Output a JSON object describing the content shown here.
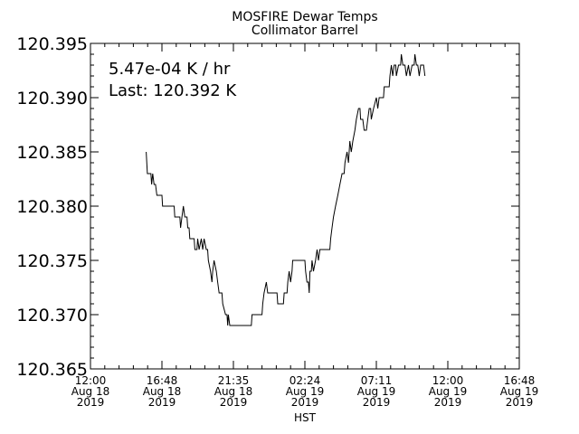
{
  "chart_data": {
    "type": "line",
    "title": "MOSFIRE Dewar Temps",
    "subtitle": "Collimator Barrel",
    "xlabel": "HST",
    "ylabel": "",
    "ylim": [
      120.365,
      120.395
    ],
    "yticks": [
      120.365,
      120.37,
      120.375,
      120.38,
      120.385,
      120.39,
      120.395
    ],
    "ytick_labels": [
      "120.365",
      "120.370",
      "120.375",
      "120.380",
      "120.385",
      "120.390",
      "120.395"
    ],
    "xticks": [
      {
        "time": "12:00",
        "date": "Aug 18",
        "year": "2019"
      },
      {
        "time": "16:48",
        "date": "Aug 18",
        "year": "2019"
      },
      {
        "time": "21:35",
        "date": "Aug 18",
        "year": "2019"
      },
      {
        "time": "02:24",
        "date": "Aug 19",
        "year": "2019"
      },
      {
        "time": "07:11",
        "date": "Aug 19",
        "year": "2019"
      },
      {
        "time": "12:00",
        "date": "Aug 19",
        "year": "2019"
      },
      {
        "time": "16:48",
        "date": "Aug 19",
        "year": "2019"
      }
    ],
    "x_unit": "hours since 12:00 Aug 18 2019",
    "xlim": [
      0,
      28.8
    ],
    "annotations": [
      "5.47e-04 K / hr",
      "Last: 120.392 K"
    ],
    "grid": false,
    "series": [
      {
        "color": "#000000",
        "points": [
          [
            3.74,
            120.385
          ],
          [
            3.82,
            120.383
          ],
          [
            4.06,
            120.383
          ],
          [
            4.11,
            120.382
          ],
          [
            4.18,
            120.383
          ],
          [
            4.27,
            120.382
          ],
          [
            4.37,
            120.382
          ],
          [
            4.46,
            120.381
          ],
          [
            4.8,
            120.381
          ],
          [
            4.84,
            120.38
          ],
          [
            5.62,
            120.38
          ],
          [
            5.66,
            120.379
          ],
          [
            6.0,
            120.379
          ],
          [
            6.05,
            120.378
          ],
          [
            6.14,
            120.379
          ],
          [
            6.24,
            120.38
          ],
          [
            6.34,
            120.379
          ],
          [
            6.48,
            120.379
          ],
          [
            6.53,
            120.378
          ],
          [
            6.62,
            120.378
          ],
          [
            6.67,
            120.377
          ],
          [
            6.96,
            120.377
          ],
          [
            7.01,
            120.376
          ],
          [
            7.15,
            120.376
          ],
          [
            7.2,
            120.377
          ],
          [
            7.3,
            120.376
          ],
          [
            7.44,
            120.377
          ],
          [
            7.54,
            120.376
          ],
          [
            7.63,
            120.377
          ],
          [
            7.78,
            120.376
          ],
          [
            7.87,
            120.376
          ],
          [
            7.92,
            120.375
          ],
          [
            8.06,
            120.374
          ],
          [
            8.16,
            120.373
          ],
          [
            8.21,
            120.374
          ],
          [
            8.3,
            120.375
          ],
          [
            8.45,
            120.374
          ],
          [
            8.54,
            120.373
          ],
          [
            8.64,
            120.372
          ],
          [
            8.83,
            120.372
          ],
          [
            8.88,
            120.371
          ],
          [
            9.07,
            120.37
          ],
          [
            9.17,
            120.37
          ],
          [
            9.22,
            120.369
          ],
          [
            9.26,
            120.37
          ],
          [
            9.36,
            120.369
          ],
          [
            10.8,
            120.369
          ],
          [
            10.85,
            120.37
          ],
          [
            11.52,
            120.37
          ],
          [
            11.57,
            120.371
          ],
          [
            11.66,
            120.372
          ],
          [
            11.81,
            120.373
          ],
          [
            11.9,
            120.372
          ],
          [
            12.53,
            120.372
          ],
          [
            12.58,
            120.371
          ],
          [
            12.96,
            120.371
          ],
          [
            13.01,
            120.372
          ],
          [
            13.2,
            120.372
          ],
          [
            13.25,
            120.373
          ],
          [
            13.34,
            120.374
          ],
          [
            13.44,
            120.373
          ],
          [
            13.54,
            120.374
          ],
          [
            13.58,
            120.375
          ],
          [
            14.4,
            120.375
          ],
          [
            14.45,
            120.374
          ],
          [
            14.54,
            120.373
          ],
          [
            14.64,
            120.373
          ],
          [
            14.69,
            120.372
          ],
          [
            14.74,
            120.374
          ],
          [
            14.83,
            120.374
          ],
          [
            14.88,
            120.375
          ],
          [
            14.98,
            120.374
          ],
          [
            15.12,
            120.375
          ],
          [
            15.22,
            120.376
          ],
          [
            15.31,
            120.375
          ],
          [
            15.41,
            120.376
          ],
          [
            16.08,
            120.376
          ],
          [
            16.13,
            120.377
          ],
          [
            16.22,
            120.378
          ],
          [
            16.32,
            120.379
          ],
          [
            16.46,
            120.38
          ],
          [
            16.61,
            120.381
          ],
          [
            16.75,
            120.382
          ],
          [
            16.9,
            120.383
          ],
          [
            17.04,
            120.383
          ],
          [
            17.09,
            120.384
          ],
          [
            17.23,
            120.385
          ],
          [
            17.33,
            120.384
          ],
          [
            17.42,
            120.386
          ],
          [
            17.52,
            120.385
          ],
          [
            17.62,
            120.386
          ],
          [
            17.76,
            120.387
          ],
          [
            17.86,
            120.388
          ],
          [
            18.0,
            120.389
          ],
          [
            18.1,
            120.389
          ],
          [
            18.14,
            120.388
          ],
          [
            18.29,
            120.388
          ],
          [
            18.38,
            120.387
          ],
          [
            18.53,
            120.387
          ],
          [
            18.62,
            120.388
          ],
          [
            18.72,
            120.389
          ],
          [
            18.82,
            120.389
          ],
          [
            18.86,
            120.388
          ],
          [
            19.01,
            120.389
          ],
          [
            19.2,
            120.39
          ],
          [
            19.3,
            120.389
          ],
          [
            19.39,
            120.39
          ],
          [
            19.68,
            120.39
          ],
          [
            19.73,
            120.391
          ],
          [
            20.06,
            120.391
          ],
          [
            20.11,
            120.392
          ],
          [
            20.21,
            120.393
          ],
          [
            20.3,
            120.392
          ],
          [
            20.4,
            120.393
          ],
          [
            20.5,
            120.393
          ],
          [
            20.54,
            120.392
          ],
          [
            20.69,
            120.393
          ],
          [
            20.83,
            120.393
          ],
          [
            20.88,
            120.394
          ],
          [
            20.98,
            120.393
          ],
          [
            21.12,
            120.393
          ],
          [
            21.22,
            120.392
          ],
          [
            21.36,
            120.393
          ],
          [
            21.46,
            120.392
          ],
          [
            21.6,
            120.393
          ],
          [
            21.74,
            120.393
          ],
          [
            21.79,
            120.394
          ],
          [
            21.89,
            120.393
          ],
          [
            21.98,
            120.393
          ],
          [
            22.08,
            120.392
          ],
          [
            22.18,
            120.393
          ],
          [
            22.37,
            120.393
          ],
          [
            22.46,
            120.392
          ]
        ]
      }
    ]
  }
}
